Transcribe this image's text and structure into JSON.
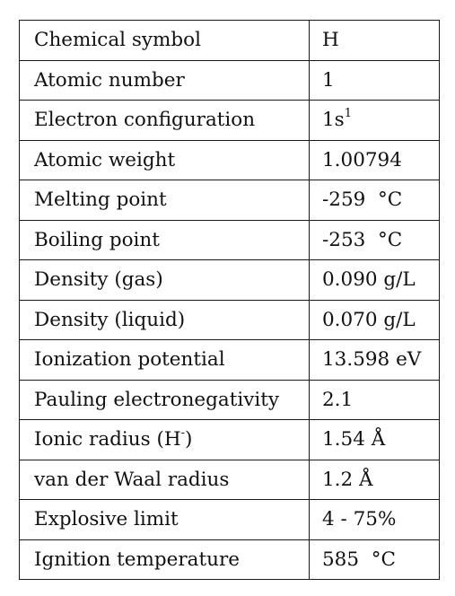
{
  "table": {
    "rows": [
      {
        "label": "Chemical symbol",
        "value": "H"
      },
      {
        "label": "Atomic number",
        "value": "1"
      },
      {
        "label": "Electron configuration",
        "value": "1s",
        "value_sup": "1"
      },
      {
        "label": "Atomic weight",
        "value": "1.00794"
      },
      {
        "label": "Melting point",
        "value": "-259  °C"
      },
      {
        "label": "Boiling point",
        "value": "-253  °C"
      },
      {
        "label": "Density (gas)",
        "value": "0.090 g/L"
      },
      {
        "label": "Density (liquid)",
        "value": "0.070 g/L"
      },
      {
        "label": "Ionization potential",
        "value": "13.598 eV"
      },
      {
        "label": "Pauling electronegativity",
        "value": "2.1"
      },
      {
        "label": "Ionic radius (H",
        "label_sup": "-",
        "label_suffix": ")",
        "value": "1.54 Å"
      },
      {
        "label": "van der Waal radius",
        "value": "1.2 Å"
      },
      {
        "label": "Explosive limit",
        "value": "4 - 75%"
      },
      {
        "label": "Ignition temperature",
        "value": "585  °C"
      }
    ]
  }
}
